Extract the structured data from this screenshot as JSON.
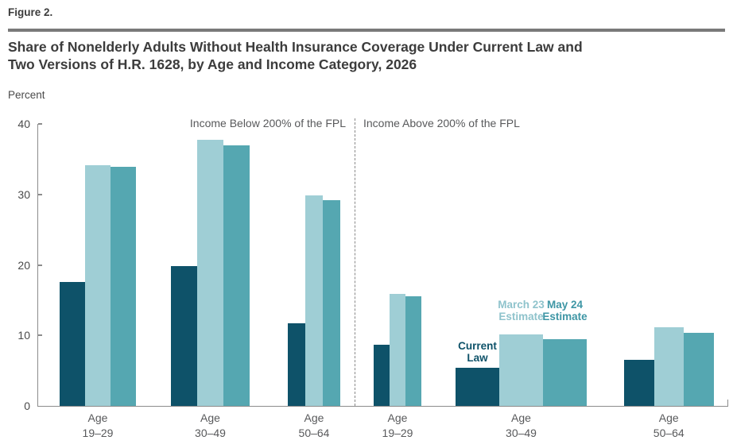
{
  "header": {
    "figure_label": "Figure 2.",
    "title": "Share of Nonelderly Adults Without Health Insurance Coverage Under Current Law and\nTwo Versions of H.R. 1628, by Age and Income Category, 2026"
  },
  "chart_data": {
    "type": "bar",
    "title": "Share of Nonelderly Adults Without Health Insurance Coverage Under Current Law and Two Versions of H.R. 1628, by Age and Income Category, 2026",
    "ylabel": "Percent",
    "xlabel": "",
    "ylim": [
      0,
      40
    ],
    "yticks": [
      0,
      10,
      20,
      30,
      40
    ],
    "grid": false,
    "legend_position": "inline-annotations",
    "series": [
      {
        "name": "Current Law",
        "annotation": "Current\nLaw",
        "color": "#0E5269",
        "label_color": "#0E5269"
      },
      {
        "name": "March 23 Estimate",
        "annotation": "March 23\nEstimate",
        "color": "#9FCED5",
        "label_color": "#8FC3CC"
      },
      {
        "name": "May 24 Estimate",
        "annotation": "May 24\nEstimate",
        "color": "#55A7B1",
        "label_color": "#3E96A5"
      }
    ],
    "sections": [
      {
        "label": "Income Below 200% of the FPL",
        "groups": [
          {
            "category": "Age\n19–29",
            "values": [
              17.6,
              34.1,
              33.9
            ]
          },
          {
            "category": "Age\n30–49",
            "values": [
              19.8,
              37.8,
              37.0
            ]
          },
          {
            "category": "Age\n50–64",
            "values": [
              11.7,
              29.9,
              29.2
            ]
          }
        ]
      },
      {
        "label": "Income Above 200% of the FPL",
        "groups": [
          {
            "category": "Age\n19–29",
            "values": [
              8.7,
              15.9,
              15.5
            ]
          },
          {
            "category": "Age\n30–49",
            "values": [
              5.4,
              10.1,
              9.5
            ]
          },
          {
            "category": "Age\n50–64",
            "values": [
              6.5,
              11.2,
              10.4
            ]
          }
        ]
      }
    ]
  }
}
